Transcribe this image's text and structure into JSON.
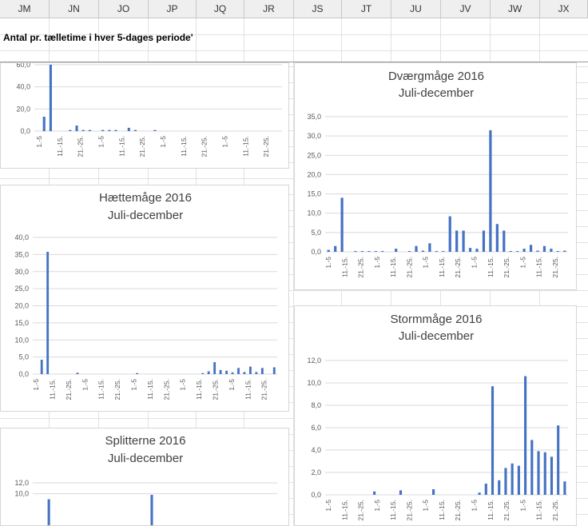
{
  "spreadsheet": {
    "columns": [
      "JM",
      "JN",
      "JO",
      "JP",
      "JQ",
      "JR",
      "JS",
      "JT",
      "JU",
      "JV",
      "JW",
      "JX"
    ],
    "title_cell": "Antal pr. tælletime i hver 5-dages periode'"
  },
  "charts": [
    {
      "id": "top-left",
      "title": "",
      "subtitle": "",
      "chart_data": {
        "type": "bar",
        "series": [
          {
            "values": [
              0,
              13,
              60,
              0,
              0,
              1,
              5,
              1,
              1,
              0,
              1,
              1,
              1,
              0,
              3,
              1,
              0,
              0,
              1,
              0,
              0,
              0,
              0,
              0,
              0,
              0,
              0,
              0,
              0,
              0,
              0,
              0,
              0,
              0,
              0,
              0,
              0,
              0
            ]
          }
        ],
        "ylim": [
          0,
          65
        ],
        "yticks": [
          "0,0",
          "20,0",
          "40,0",
          "60,0"
        ],
        "ytick_values": [
          0,
          20,
          40,
          60
        ],
        "xticks": [
          "1.-5",
          "11.-15.",
          "21.-25.",
          "1.-5",
          "11.-15.",
          "21.-25.",
          "1.-5",
          "11.-15.",
          "21.-25.",
          "1.-5",
          "11.-15.",
          "21.-25."
        ]
      }
    },
    {
      "id": "haettemaage",
      "title": "Hættemåge 2016",
      "subtitle": "Juli-december",
      "chart_data": {
        "type": "bar",
        "series": [
          {
            "values": [
              0,
              4.2,
              35.8,
              0,
              0,
              0,
              0,
              0.4,
              0,
              0,
              0,
              0,
              0,
              0,
              0,
              0,
              0,
              0.3,
              0,
              0,
              0,
              0,
              0,
              0,
              0,
              0,
              0,
              0,
              0.3,
              0.8,
              3.5,
              1.2,
              1,
              0.5,
              1.8,
              0.6,
              2.2,
              0.6,
              1.8,
              0,
              2
            ]
          }
        ],
        "ylim": [
          0,
          40
        ],
        "yticks": [
          "0,0",
          "5,0",
          "10,0",
          "15,0",
          "20,0",
          "25,0",
          "30,0",
          "35,0",
          "40,0"
        ],
        "ytick_values": [
          0,
          5,
          10,
          15,
          20,
          25,
          30,
          35,
          40
        ],
        "xticks": [
          "1.-5",
          "11.-15.",
          "21.-25.",
          "1.-5",
          "11.-15.",
          "21.-25.",
          "1.-5",
          "11.-15.",
          "21.-25.",
          "1.-5",
          "11.-15.",
          "21.-25.",
          "1.-5",
          "11.-15.",
          "21.-25."
        ]
      }
    },
    {
      "id": "splitterne",
      "title": "Splitterne 2016",
      "subtitle": "Juli-december",
      "chart_data": {
        "type": "bar",
        "series": [
          {
            "values": [
              0,
              0,
              9,
              0,
              0,
              0,
              0,
              0,
              0,
              0,
              0,
              0,
              0,
              0,
              0,
              0,
              0,
              0,
              9.8,
              0,
              0,
              0,
              0,
              0,
              0,
              0,
              0,
              0,
              0,
              0,
              0,
              0,
              0,
              0,
              0,
              0,
              0,
              0
            ]
          }
        ],
        "ylim": [
          0,
          12
        ],
        "yticks": [
          "10,0",
          "12,0"
        ],
        "ytick_values": [
          10,
          12
        ],
        "xticks": []
      }
    },
    {
      "id": "dvaergmaage",
      "title": "Dværgmåge 2016",
      "subtitle": "Juli-december",
      "chart_data": {
        "type": "bar",
        "series": [
          {
            "values": [
              0.5,
              1.5,
              14,
              0,
              0.2,
              0.2,
              0.2,
              0.2,
              0.2,
              0,
              0.8,
              0,
              0.2,
              1.5,
              0.3,
              2.2,
              0.2,
              0.2,
              9.2,
              5.5,
              5.5,
              1,
              0.8,
              5.5,
              31.5,
              7.2,
              5.5,
              0.2,
              0.2,
              0.8,
              1.8,
              0.3,
              1.5,
              0.8,
              0.2,
              0.3
            ]
          }
        ],
        "ylim": [
          0,
          35
        ],
        "yticks": [
          "0,0",
          "5,0",
          "10,0",
          "15,0",
          "20,0",
          "25,0",
          "30,0",
          "35,0"
        ],
        "ytick_values": [
          0,
          5,
          10,
          15,
          20,
          25,
          30,
          35
        ],
        "xticks": [
          "1.-5",
          "11.-15.",
          "21.-25.",
          "1.-5",
          "11.-15.",
          "21.-25.",
          "1.-5",
          "11.-15.",
          "21.-25.",
          "1.-5",
          "11.-15.",
          "21.-25.",
          "1.-5",
          "11.-15.",
          "21.-25."
        ]
      }
    },
    {
      "id": "stormmaage",
      "title": "Stormmåge 2016",
      "subtitle": "Juli-december",
      "chart_data": {
        "type": "bar",
        "series": [
          {
            "values": [
              0,
              0,
              0,
              0,
              0,
              0,
              0,
              0.3,
              0,
              0,
              0,
              0.4,
              0,
              0,
              0,
              0,
              0.5,
              0,
              0,
              0,
              0,
              0,
              0,
              0.2,
              1,
              9.7,
              1.3,
              2.4,
              2.8,
              2.6,
              10.6,
              4.9,
              3.9,
              3.8,
              3.4,
              6.2,
              1.2
            ]
          }
        ],
        "ylim": [
          0,
          12
        ],
        "yticks": [
          "0,0",
          "2,0",
          "4,0",
          "6,0",
          "8,0",
          "10,0",
          "12,0"
        ],
        "ytick_values": [
          0,
          2,
          4,
          6,
          8,
          10,
          12
        ],
        "xticks": [
          "1.-5",
          "11.-15.",
          "21.-25.",
          "1.-5",
          "11.-15.",
          "21.-25.",
          "1.-5",
          "11.-15.",
          "21.-25.",
          "1.-5",
          "11.-15.",
          "21.-25.",
          "1.-5",
          "11.-15.",
          "21.-25."
        ]
      }
    }
  ],
  "colors": {
    "bar": "#4472c4",
    "grid": "#d9d9d9",
    "header_bg": "#efefef"
  }
}
